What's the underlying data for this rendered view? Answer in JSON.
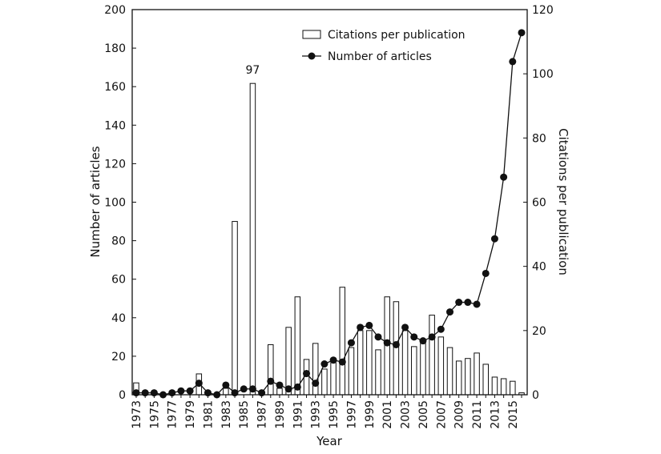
{
  "chart_data": {
    "type": "bar+line",
    "xlabel": "Year",
    "ylabel_left": "Number of articles",
    "ylabel_right": "Citations per publication",
    "ylim_left": [
      0,
      200
    ],
    "ylim_right": [
      0,
      120
    ],
    "yticks_left": [
      0,
      20,
      40,
      60,
      80,
      100,
      120,
      140,
      160,
      180,
      200
    ],
    "yticks_right": [
      0,
      20,
      40,
      60,
      80,
      100,
      120
    ],
    "x": [
      1973,
      1974,
      1975,
      1976,
      1977,
      1978,
      1979,
      1980,
      1981,
      1982,
      1983,
      1984,
      1985,
      1986,
      1987,
      1988,
      1989,
      1990,
      1991,
      1992,
      1993,
      1994,
      1995,
      1996,
      1997,
      1998,
      1999,
      2000,
      2001,
      2002,
      2003,
      2004,
      2005,
      2006,
      2007,
      2008,
      2009,
      2010,
      2011,
      2012,
      2013,
      2014,
      2015,
      2016
    ],
    "xtick_labels": [
      "1973",
      "1975",
      "1977",
      "1979",
      "1981",
      "1983",
      "1985",
      "1987",
      "1989",
      "1991",
      "1993",
      "1995",
      "1997",
      "1999",
      "2001",
      "2003",
      "2005",
      "2007",
      "2009",
      "2011",
      "2013",
      "2015"
    ],
    "series": [
      {
        "name": "Citations per publication",
        "type": "bar",
        "axis": "right",
        "values": [
          3.7,
          0,
          0,
          0,
          0,
          0,
          0,
          6.5,
          0,
          0,
          2,
          54,
          0,
          97,
          0,
          15.6,
          2,
          21,
          30.5,
          11,
          16,
          8,
          10,
          33.5,
          14.7,
          20,
          20,
          14,
          30.5,
          29,
          20,
          15,
          16,
          24.8,
          18,
          14.7,
          10.5,
          11.3,
          13,
          9.5,
          5.5,
          5,
          4.2,
          0.6
        ]
      },
      {
        "name": "Number of articles",
        "type": "line",
        "axis": "left",
        "values": [
          1,
          1,
          1,
          0,
          1,
          2,
          2,
          6,
          1,
          0,
          5,
          1,
          3,
          3,
          1,
          7,
          5,
          3,
          4,
          11,
          6,
          16,
          18,
          17,
          27,
          35,
          36,
          30,
          27,
          26,
          35,
          30,
          28,
          30,
          34,
          43,
          48,
          48,
          47,
          63,
          81,
          113,
          173,
          188
        ]
      }
    ],
    "annotations": [
      {
        "year": 1986,
        "text": "97"
      }
    ],
    "legend": {
      "placement": "top-center",
      "entries": [
        "Citations per publication",
        "Number of articles"
      ]
    }
  }
}
